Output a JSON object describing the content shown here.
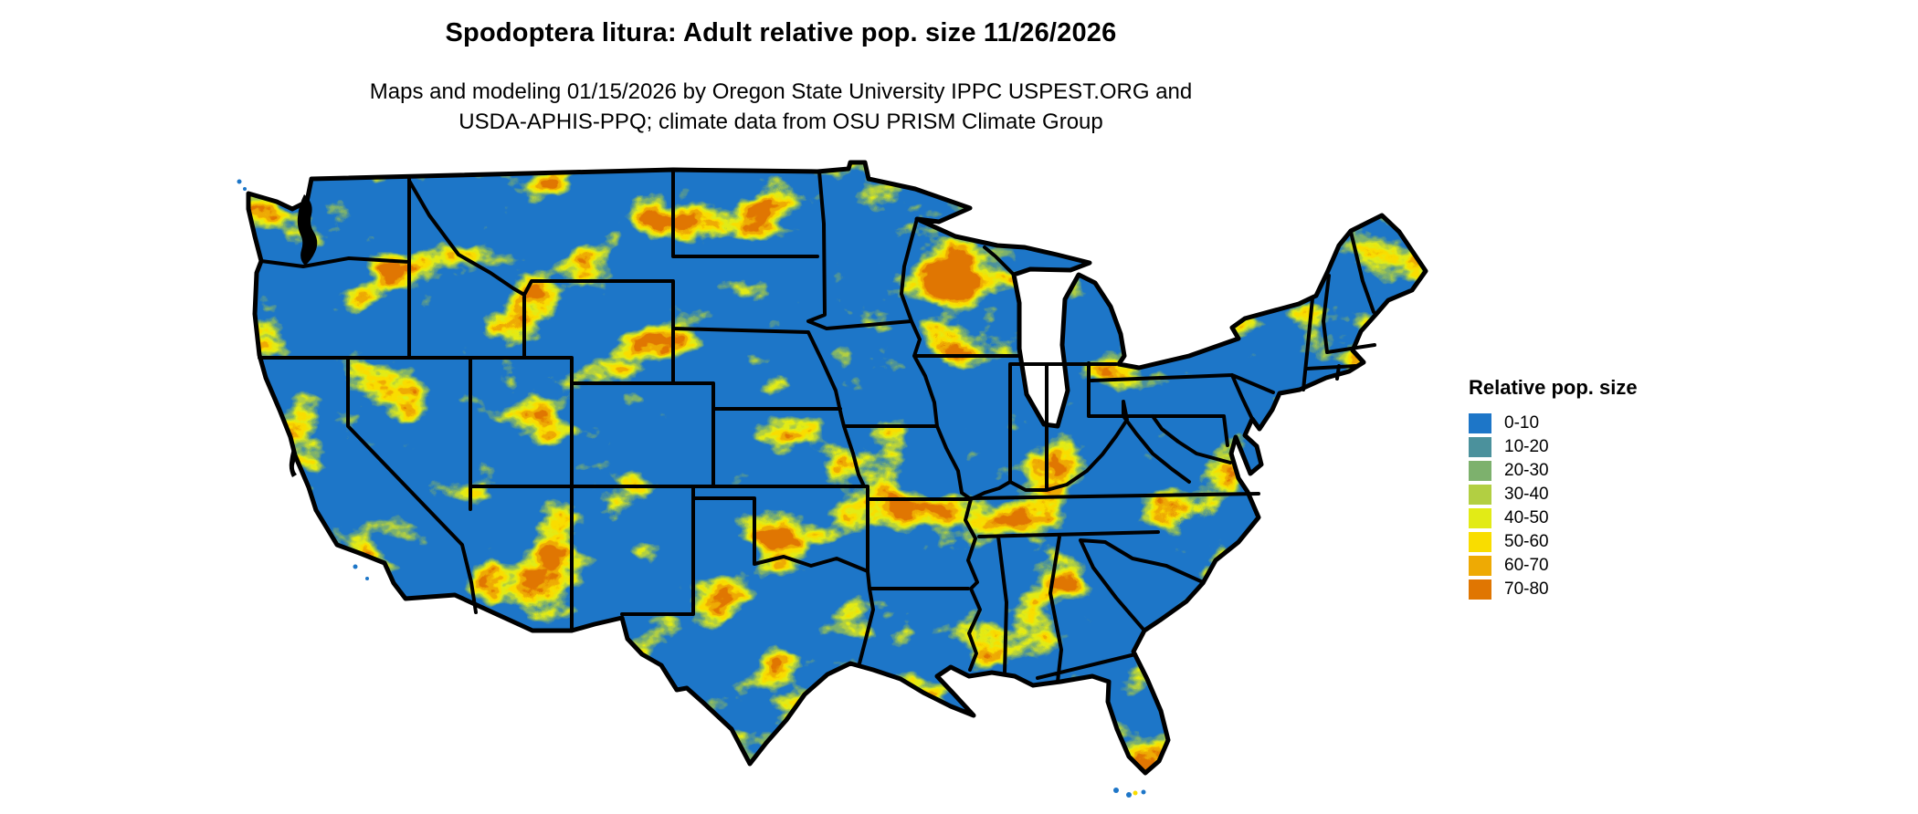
{
  "header": {
    "title": "Spodoptera litura: Adult relative pop. size 11/26/2026",
    "subtitle_line1": "Maps and modeling 01/15/2026 by Oregon State University IPPC USPEST.ORG and",
    "subtitle_line2": "USDA-APHIS-PPQ; climate data from OSU PRISM Climate Group"
  },
  "legend": {
    "title": "Relative pop. size",
    "classes": [
      {
        "label": "0-10",
        "color": "#1d76c8"
      },
      {
        "label": "10-20",
        "color": "#4b919c"
      },
      {
        "label": "20-30",
        "color": "#7db16d"
      },
      {
        "label": "30-40",
        "color": "#b2cf42"
      },
      {
        "label": "40-50",
        "color": "#e2eb16"
      },
      {
        "label": "50-60",
        "color": "#f9dd00"
      },
      {
        "label": "60-70",
        "color": "#eeaa04"
      },
      {
        "label": "70-80",
        "color": "#e07602"
      }
    ]
  },
  "map": {
    "region_depicted": "Continental United States",
    "boundary_color": "#000000",
    "water_background_color": "#ffffff",
    "base_fill_class": "0-10"
  }
}
